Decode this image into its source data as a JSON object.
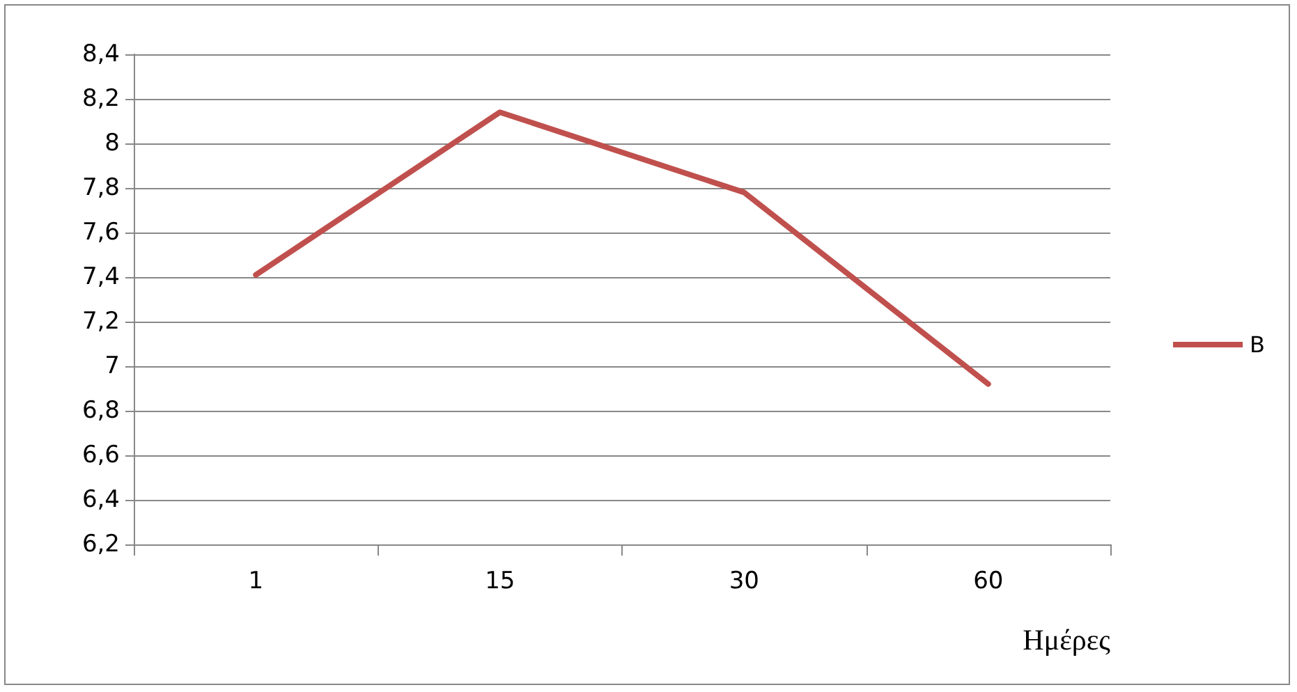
{
  "chart_data": {
    "type": "line",
    "xlabel": "Ημέρες",
    "categories": [
      "1",
      "15",
      "30",
      "60"
    ],
    "series": [
      {
        "name": "B",
        "color": "#c0504d",
        "values": [
          7.41,
          8.14,
          7.78,
          6.92
        ]
      }
    ],
    "ylim": [
      6.2,
      8.4
    ],
    "yticks": [
      {
        "value": 6.2,
        "label": "6,2"
      },
      {
        "value": 6.4,
        "label": "6,4"
      },
      {
        "value": 6.6,
        "label": "6,6"
      },
      {
        "value": 6.8,
        "label": "6,8"
      },
      {
        "value": 7,
        "label": "7"
      },
      {
        "value": 7.2,
        "label": "7,2"
      },
      {
        "value": 7.4,
        "label": "7,4"
      },
      {
        "value": 7.6,
        "label": "7,6"
      },
      {
        "value": 7.8,
        "label": "7,8"
      },
      {
        "value": 8,
        "label": "8"
      },
      {
        "value": 8.2,
        "label": "8,2"
      },
      {
        "value": 8.4,
        "label": "8,4"
      }
    ],
    "grid": "y",
    "legend": "right",
    "marker": "none",
    "line_style": "solid"
  }
}
